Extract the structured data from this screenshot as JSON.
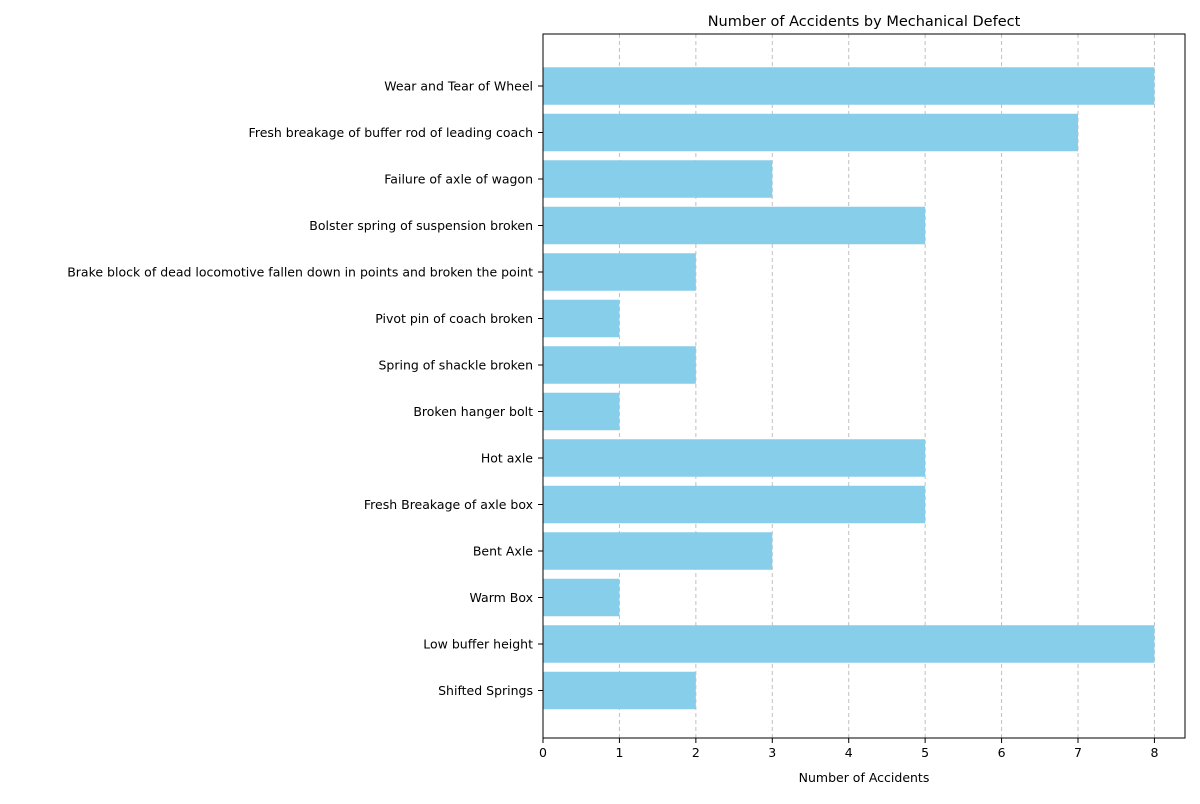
{
  "chart_data": {
    "type": "bar",
    "orientation": "horizontal",
    "title": "Number of Accidents by Mechanical Defect",
    "xlabel": "Number of Accidents",
    "ylabel": "",
    "categories": [
      "Wear and Tear of Wheel",
      "Fresh breakage of buffer rod of leading coach",
      "Failure of axle of wagon",
      "Bolster spring of suspension broken",
      "Brake block of dead locomotive fallen down in points and broken the point",
      "Pivot pin of coach broken",
      "Spring of shackle broken",
      "Broken hanger bolt",
      "Hot axle",
      "Fresh Breakage of axle box",
      "Bent Axle",
      "Warm Box",
      "Low buffer height",
      "Shifted Springs"
    ],
    "values": [
      8,
      7,
      3,
      5,
      2,
      1,
      2,
      1,
      5,
      5,
      3,
      1,
      8,
      2
    ],
    "xlim": [
      0,
      8.4
    ],
    "xticks": [
      "0",
      "1",
      "2",
      "3",
      "4",
      "5",
      "6",
      "7",
      "8"
    ],
    "grid": "x-dashed",
    "bar_color": "#87CEEB",
    "grid_color": "#c0c0c0"
  }
}
